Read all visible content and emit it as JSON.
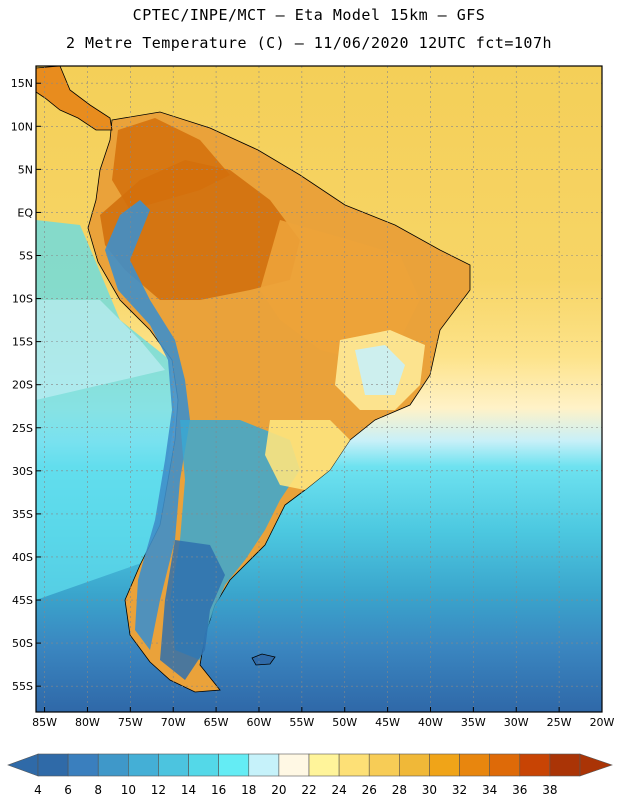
{
  "title": {
    "line1": "CPTEC/INPE/MCT –  Eta Model 15km – GFS",
    "line2": "2 Metre Temperature (C) – 11/06/2020 12UTC fct=107h"
  },
  "map": {
    "lat_labels": [
      "15N",
      "10N",
      "5N",
      "EQ",
      "5S",
      "10S",
      "15S",
      "20S",
      "25S",
      "30S",
      "35S",
      "40S",
      "45S",
      "50S",
      "55S"
    ],
    "lon_labels": [
      "85W",
      "80W",
      "75W",
      "70W",
      "65W",
      "60W",
      "55W",
      "50W",
      "45W",
      "40W",
      "35W",
      "30W",
      "25W",
      "20W"
    ],
    "lat_range": [
      17,
      -58
    ],
    "lon_range": [
      -86,
      -20
    ],
    "grid": true
  },
  "colorbar": {
    "labels": [
      "4",
      "6",
      "8",
      "10",
      "12",
      "14",
      "16",
      "18",
      "20",
      "22",
      "24",
      "26",
      "28",
      "30",
      "32",
      "34",
      "36",
      "38"
    ],
    "colors": [
      "#2f6aa8",
      "#3a7fbe",
      "#3f98c9",
      "#44afd6",
      "#4cc4df",
      "#54d8e8",
      "#64ecf4",
      "#c6f2fa",
      "#fff8e4",
      "#fff49a",
      "#fde076",
      "#f7cc56",
      "#f0b838",
      "#f0a418",
      "#e8860e",
      "#de6a08",
      "#c84404",
      "#aa3406"
    ]
  }
}
